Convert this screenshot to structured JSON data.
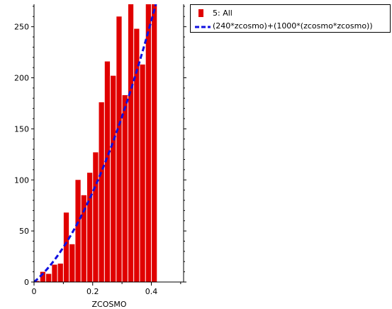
{
  "chart_data": {
    "type": "bar",
    "title": "",
    "xlabel": "ZCOSMO",
    "ylabel": "",
    "xlim": [
      0,
      0.51
    ],
    "ylim": [
      0,
      272
    ],
    "x_ticks": [
      "0",
      "0.2",
      "0.4"
    ],
    "x_tick_values": [
      0,
      0.2,
      0.4
    ],
    "y_ticks": [
      "0",
      "50",
      "100",
      "150",
      "200",
      "250"
    ],
    "y_tick_values": [
      0,
      50,
      100,
      150,
      200,
      250
    ],
    "bin_width": 0.02,
    "bin_starts": [
      0.0,
      0.02,
      0.04,
      0.06,
      0.08,
      0.1,
      0.12,
      0.14,
      0.16,
      0.18,
      0.2,
      0.22,
      0.24,
      0.26,
      0.28,
      0.3,
      0.32,
      0.34,
      0.36,
      0.38,
      0.4,
      0.42,
      0.44,
      0.46,
      0.48
    ],
    "series": [
      {
        "name": "5: All",
        "kind": "histogram",
        "color": "#e00000",
        "values": [
          1,
          10,
          8,
          17,
          18,
          68,
          37,
          100,
          85,
          107,
          127,
          176,
          216,
          202,
          260,
          183,
          275,
          248,
          213,
          275,
          275,
          0,
          0,
          0,
          0
        ]
      },
      {
        "name": "(240*zcosmo)+(1000*(zcosmo*zcosmo))",
        "kind": "function",
        "color": "#1010e0",
        "line_style": "dashed",
        "coefficients": {
          "linear": 240,
          "quadratic": 1000
        }
      }
    ],
    "legend": {
      "placement": "outside-top-right",
      "entries": [
        "5: All",
        "(240*zcosmo)+(1000*(zcosmo*zcosmo))"
      ]
    },
    "grid": false
  },
  "colors": {
    "bar": "#e00000",
    "function_line": "#1010e0",
    "axis": "#000000"
  }
}
